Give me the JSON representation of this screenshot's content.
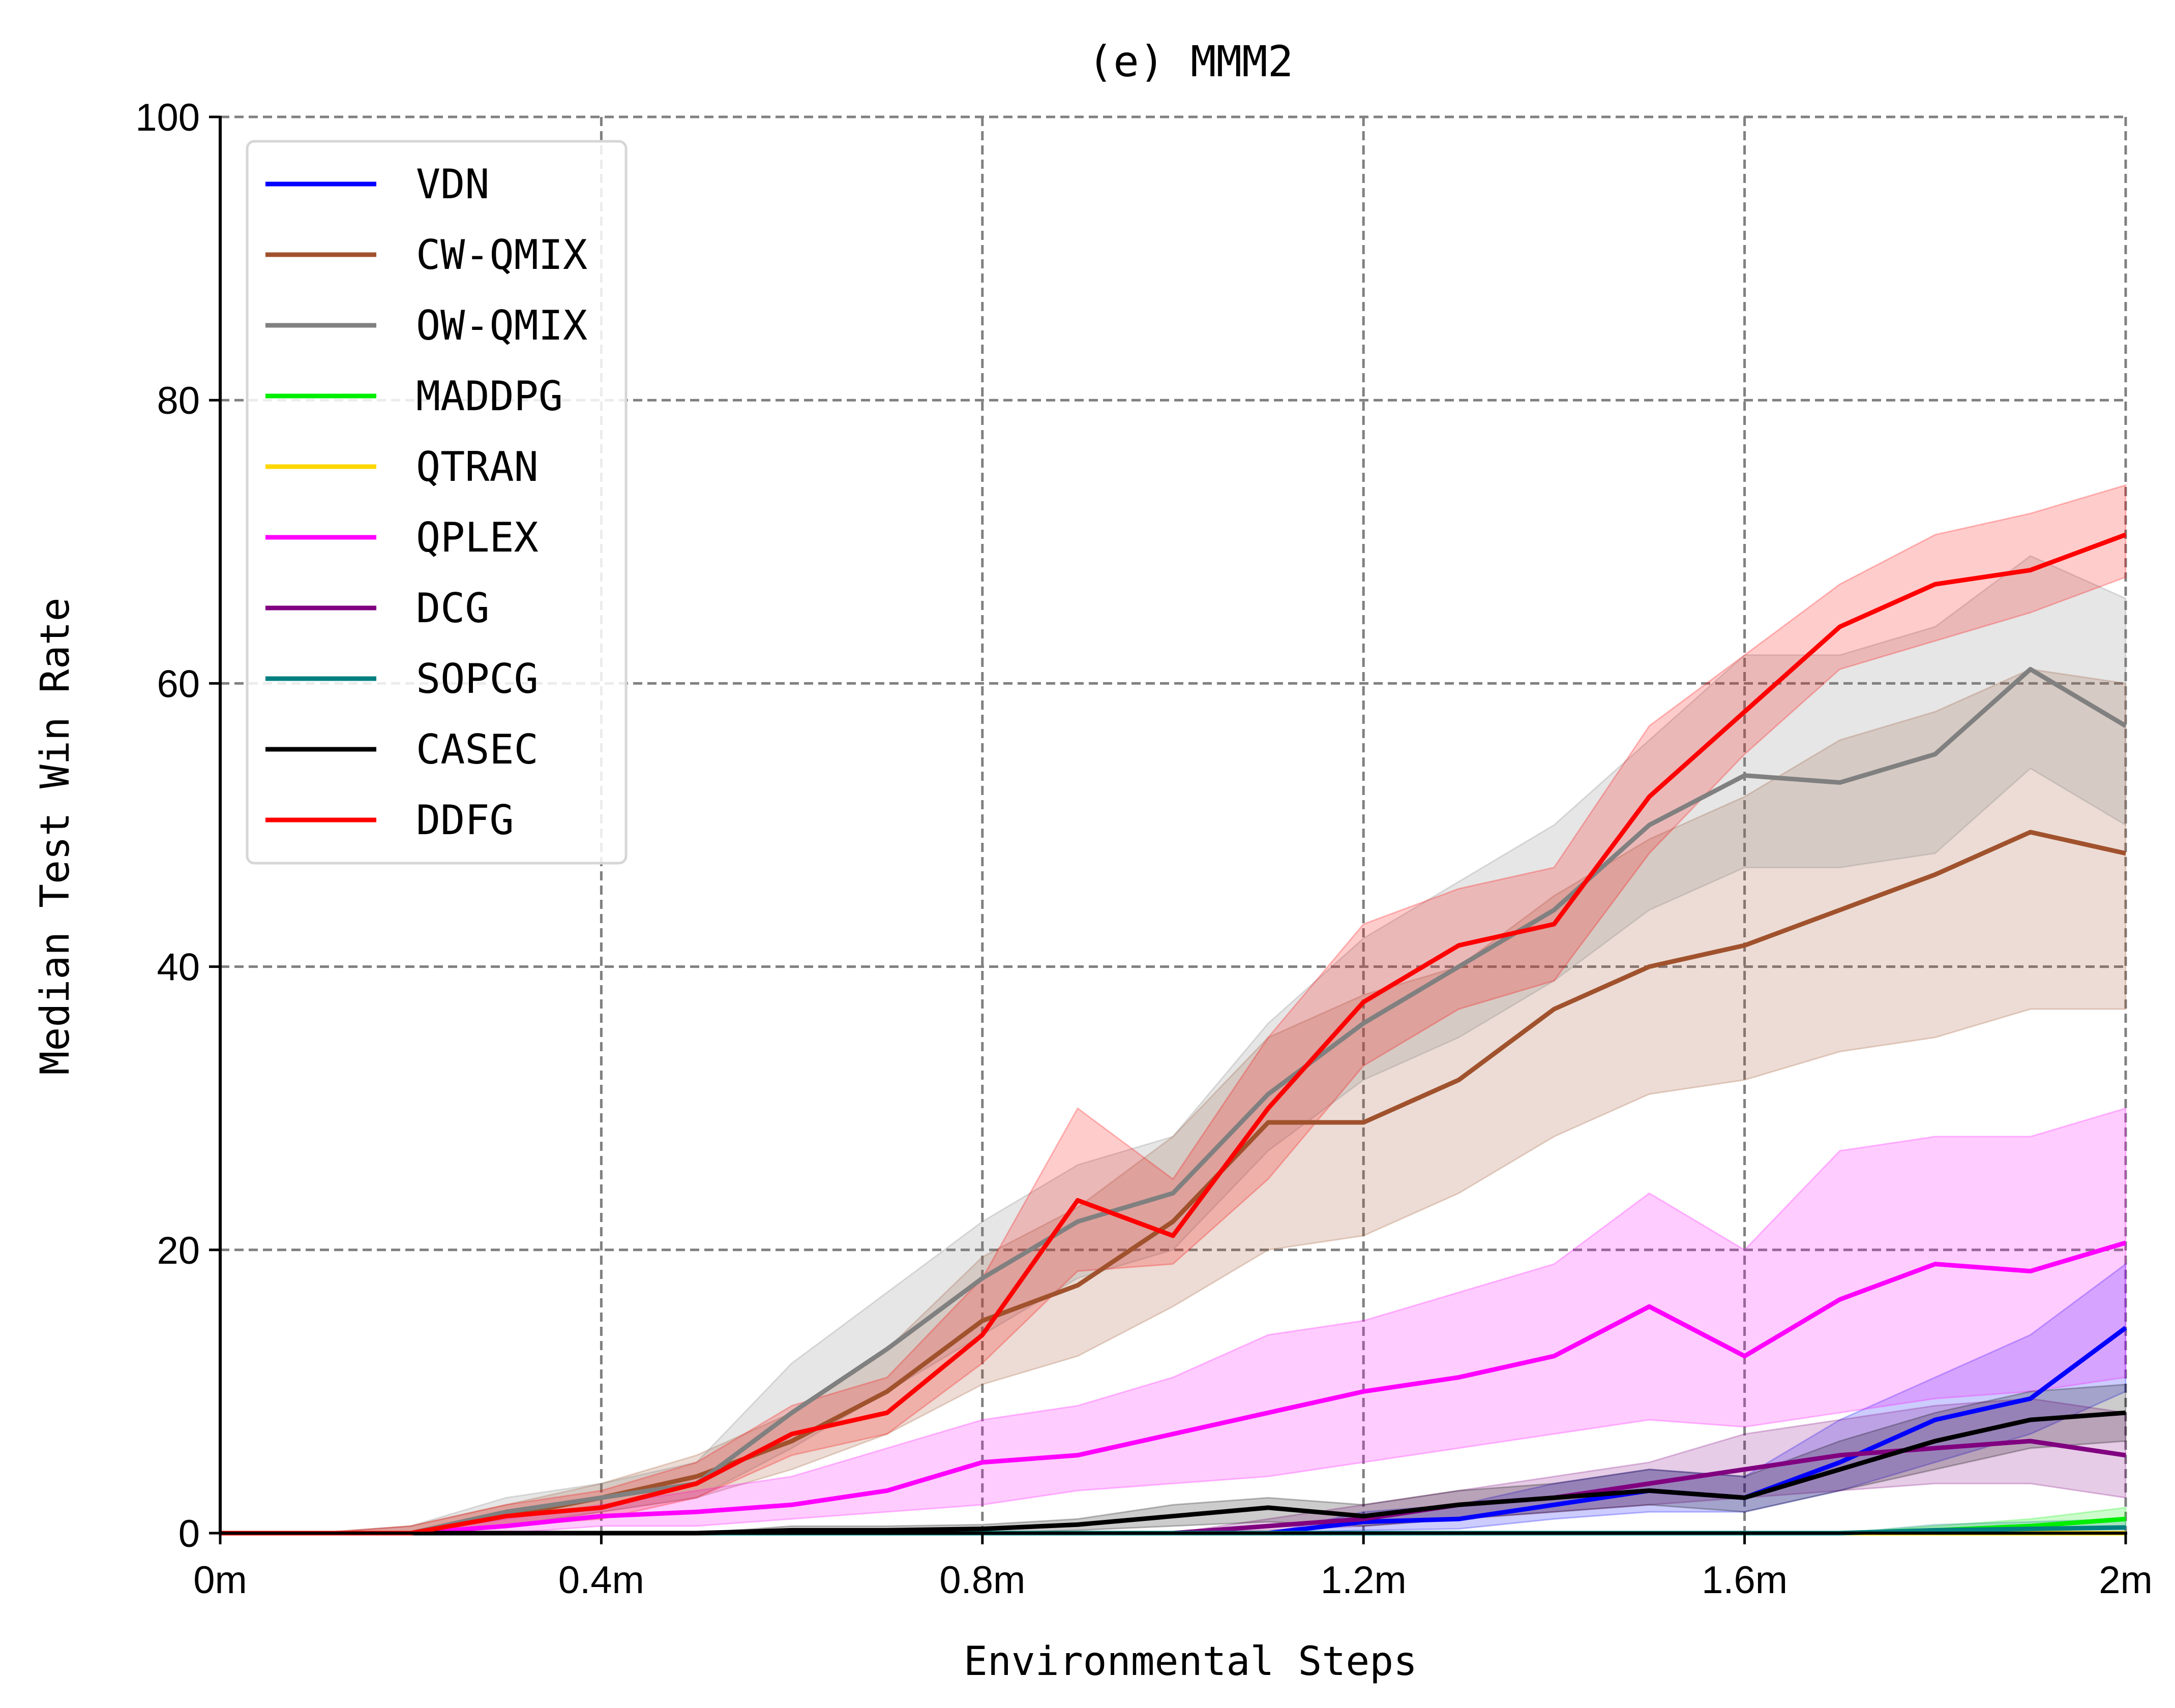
{
  "chart_data": {
    "type": "line",
    "title": "(e) MMM2",
    "xlabel": "Environmental Steps",
    "ylabel": "Median Test Win Rate",
    "xlim": [
      0,
      2
    ],
    "ylim": [
      0,
      100
    ],
    "x_ticks": [
      0,
      0.4,
      0.8,
      1.2,
      1.6,
      2.0
    ],
    "x_tick_labels": [
      "0m",
      "0.4m",
      "0.8m",
      "1.2m",
      "1.6m",
      "2m"
    ],
    "y_ticks": [
      0,
      20,
      40,
      60,
      80,
      100
    ],
    "y_tick_labels": [
      "0",
      "20",
      "40",
      "60",
      "80",
      "100"
    ],
    "grid": true,
    "legend_position": "top-left",
    "x": [
      0,
      0.1,
      0.2,
      0.3,
      0.4,
      0.5,
      0.6,
      0.7,
      0.8,
      0.9,
      1.0,
      1.1,
      1.2,
      1.3,
      1.4,
      1.5,
      1.6,
      1.7,
      1.8,
      1.9,
      2.0
    ],
    "series": [
      {
        "name": "VDN",
        "color": "#0000ff",
        "values": [
          0,
          0,
          0,
          0,
          0,
          0,
          0,
          0,
          0,
          0,
          0,
          0,
          0.8,
          1.0,
          2.0,
          3.0,
          2.5,
          5.0,
          8.0,
          9.5,
          14.5
        ],
        "lower": [
          0,
          0,
          0,
          0,
          0,
          0,
          0,
          0,
          0,
          0,
          0,
          0,
          0.2,
          0.3,
          1.0,
          1.5,
          1.5,
          3.0,
          5.0,
          7.0,
          10.0
        ],
        "upper": [
          0,
          0,
          0,
          0,
          0,
          0,
          0,
          0,
          0,
          0,
          0,
          0,
          1.5,
          2.0,
          3.5,
          4.5,
          4.0,
          8.0,
          11.0,
          14.0,
          19.0
        ]
      },
      {
        "name": "CW-QMIX",
        "color": "#a0522d",
        "values": [
          0,
          0,
          0,
          1.2,
          2.5,
          4.0,
          6.5,
          10.0,
          15.0,
          17.5,
          22.0,
          29.0,
          29.0,
          32.0,
          37.0,
          40.0,
          41.5,
          44.0,
          46.5,
          49.5,
          48.0
        ],
        "lower": [
          0,
          0,
          0,
          0.5,
          1.5,
          2.5,
          4.5,
          7.0,
          10.5,
          12.5,
          16.0,
          20.0,
          21.0,
          24.0,
          28.0,
          31.0,
          32.0,
          34.0,
          35.0,
          37.0,
          37.0
        ],
        "upper": [
          0,
          0,
          0.5,
          2.0,
          3.5,
          5.5,
          8.5,
          13.0,
          19.5,
          23.0,
          28.0,
          35.0,
          38.0,
          40.0,
          45.0,
          49.0,
          52.0,
          56.0,
          58.0,
          61.0,
          60.0
        ]
      },
      {
        "name": "OW-QMIX",
        "color": "#808080",
        "values": [
          0,
          0,
          0,
          1.5,
          2.5,
          3.5,
          8.5,
          13.0,
          18.0,
          22.0,
          24.0,
          31.0,
          36.0,
          40.0,
          44.0,
          50.0,
          53.5,
          53.0,
          55.0,
          61.0,
          57.0
        ],
        "lower": [
          0,
          0,
          0,
          0.5,
          1.5,
          2.5,
          6.0,
          10.0,
          14.0,
          18.0,
          20.0,
          27.0,
          32.0,
          35.0,
          39.0,
          44.0,
          47.0,
          47.0,
          48.0,
          54.0,
          50.0
        ],
        "upper": [
          0,
          0,
          0.5,
          2.5,
          3.5,
          5.0,
          12.0,
          17.0,
          22.0,
          26.0,
          28.0,
          36.0,
          42.0,
          46.0,
          50.0,
          56.0,
          62.0,
          62.0,
          64.0,
          69.0,
          66.0
        ]
      },
      {
        "name": "MADDPG",
        "color": "#00ee00",
        "values": [
          0,
          0,
          0,
          0,
          0,
          0,
          0,
          0,
          0,
          0,
          0,
          0,
          0,
          0,
          0,
          0,
          0,
          0,
          0.2,
          0.5,
          1.0
        ],
        "lower": [
          0,
          0,
          0,
          0,
          0,
          0,
          0,
          0,
          0,
          0,
          0,
          0,
          0,
          0,
          0,
          0,
          0,
          0,
          0,
          0.2,
          0.5
        ],
        "upper": [
          0,
          0,
          0,
          0,
          0,
          0,
          0,
          0,
          0,
          0,
          0,
          0,
          0,
          0,
          0,
          0,
          0,
          0,
          0.5,
          1.0,
          1.8
        ]
      },
      {
        "name": "QTRAN",
        "color": "#ffd700",
        "values": [
          0,
          0,
          0,
          0,
          0,
          0,
          0,
          0,
          0,
          0,
          0,
          0,
          0,
          0,
          0,
          0,
          0,
          0,
          0,
          0,
          0
        ],
        "lower": [
          0,
          0,
          0,
          0,
          0,
          0,
          0,
          0,
          0,
          0,
          0,
          0,
          0,
          0,
          0,
          0,
          0,
          0,
          0,
          0,
          0
        ],
        "upper": [
          0,
          0,
          0,
          0,
          0,
          0,
          0,
          0,
          0,
          0,
          0,
          0,
          0,
          0,
          0,
          0,
          0,
          0,
          0,
          0,
          0
        ]
      },
      {
        "name": "QPLEX",
        "color": "#ff00ff",
        "values": [
          0,
          0,
          0,
          0.5,
          1.2,
          1.5,
          2.0,
          3.0,
          5.0,
          5.5,
          7.0,
          8.5,
          10.0,
          11.0,
          12.5,
          16.0,
          12.5,
          16.5,
          19.0,
          18.5,
          20.5
        ],
        "lower": [
          0,
          0,
          0,
          0,
          0.5,
          0.5,
          1.0,
          1.5,
          2.0,
          3.0,
          3.5,
          4.0,
          5.0,
          6.0,
          7.0,
          8.0,
          7.5,
          8.5,
          9.5,
          10.0,
          11.0
        ],
        "upper": [
          0,
          0,
          0,
          1.0,
          2.0,
          3.0,
          4.0,
          6.0,
          8.0,
          9.0,
          11.0,
          14.0,
          15.0,
          17.0,
          19.0,
          24.0,
          20.0,
          27.0,
          28.0,
          28.0,
          30.0
        ]
      },
      {
        "name": "DCG",
        "color": "#800080",
        "values": [
          0,
          0,
          0,
          0,
          0,
          0,
          0,
          0,
          0,
          0,
          0,
          0.5,
          1.0,
          2.0,
          2.5,
          3.5,
          4.5,
          5.5,
          6.0,
          6.5,
          5.5
        ],
        "lower": [
          0,
          0,
          0,
          0,
          0,
          0,
          0,
          0,
          0,
          0,
          0,
          0.2,
          0.5,
          1.0,
          1.5,
          2.0,
          2.5,
          3.0,
          3.5,
          3.5,
          2.5
        ],
        "upper": [
          0,
          0,
          0,
          0,
          0,
          0,
          0,
          0,
          0,
          0,
          0,
          1.0,
          2.0,
          3.0,
          4.0,
          5.0,
          7.0,
          8.0,
          9.0,
          9.5,
          8.5
        ]
      },
      {
        "name": "SOPCG",
        "color": "#008080",
        "values": [
          0,
          0,
          0,
          0,
          0,
          0,
          0,
          0,
          0,
          0,
          0,
          0,
          0,
          0,
          0,
          0,
          0,
          0,
          0.2,
          0.3,
          0.4
        ],
        "lower": [
          0,
          0,
          0,
          0,
          0,
          0,
          0,
          0,
          0,
          0,
          0,
          0,
          0,
          0,
          0,
          0,
          0,
          0,
          0,
          0,
          0
        ],
        "upper": [
          0,
          0,
          0,
          0,
          0,
          0,
          0,
          0,
          0,
          0,
          0,
          0,
          0,
          0,
          0,
          0,
          0,
          0,
          0.6,
          0.8,
          1.0
        ]
      },
      {
        "name": "CASEC",
        "color": "#000000",
        "values": [
          0,
          0,
          0,
          0,
          0,
          0,
          0.2,
          0.2,
          0.3,
          0.6,
          1.2,
          1.8,
          1.2,
          2.0,
          2.5,
          3.0,
          2.5,
          4.5,
          6.5,
          8.0,
          8.5
        ],
        "lower": [
          0,
          0,
          0,
          0,
          0,
          0,
          0,
          0,
          0,
          0.2,
          0.5,
          0.8,
          0.5,
          1.0,
          1.5,
          2.0,
          1.5,
          3.0,
          4.5,
          6.0,
          6.5
        ],
        "upper": [
          0,
          0,
          0,
          0,
          0,
          0,
          0.5,
          0.5,
          0.6,
          1.0,
          2.0,
          2.5,
          2.0,
          3.0,
          3.5,
          4.5,
          4.0,
          6.5,
          8.5,
          10.0,
          10.5
        ]
      },
      {
        "name": "DDFG",
        "color": "#ff0000",
        "values": [
          0,
          0,
          0,
          1.2,
          1.8,
          3.5,
          7.0,
          8.5,
          14.0,
          23.5,
          21.0,
          30.0,
          37.5,
          41.5,
          43.0,
          52.0,
          58.0,
          64.0,
          67.0,
          68.0,
          70.5
        ],
        "lower": [
          0,
          0,
          0,
          0.5,
          1.0,
          2.5,
          5.5,
          7.0,
          12.0,
          18.5,
          19.0,
          25.0,
          33.0,
          37.0,
          39.0,
          48.0,
          55.0,
          61.0,
          63.0,
          65.0,
          67.5
        ],
        "upper": [
          0,
          0,
          0.5,
          2.0,
          3.0,
          5.0,
          9.0,
          11.0,
          18.0,
          30.0,
          25.0,
          35.0,
          43.0,
          45.5,
          47.0,
          57.0,
          62.0,
          67.0,
          70.5,
          72.0,
          74.0
        ]
      }
    ]
  }
}
